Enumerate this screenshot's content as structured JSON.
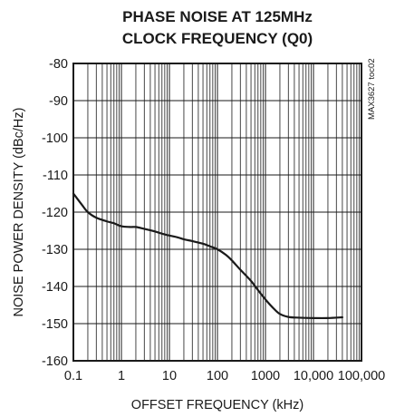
{
  "chart_data": {
    "type": "line",
    "title_lines": [
      "PHASE NOISE AT 125MHz",
      "CLOCK FREQUENCY (Q0)"
    ],
    "xlabel": "OFFSET FREQUENCY (kHz)",
    "ylabel": "NOISE POWER DENSITY (dBc/Hz)",
    "xscale": "log",
    "xlim": [
      0.1,
      100000
    ],
    "ylim": [
      -160,
      -80
    ],
    "xticks": [
      0.1,
      1,
      10,
      100,
      1000,
      10000,
      100000
    ],
    "xtick_labels": [
      "0.1",
      "1",
      "10",
      "100",
      "1000",
      "10,000",
      "100,000"
    ],
    "yticks": [
      -80,
      -90,
      -100,
      -110,
      -120,
      -130,
      -140,
      -150,
      -160
    ],
    "ytick_labels": [
      "-80",
      "-90",
      "-100",
      "-110",
      "-120",
      "-130",
      "-140",
      "-150",
      "-160"
    ],
    "grid": true,
    "part_code": "MAX3627 toc02",
    "series": [
      {
        "color": "#1a1a1a",
        "x": [
          0.1,
          0.15,
          0.2,
          0.3,
          0.5,
          0.7,
          1,
          1.5,
          2,
          3,
          5,
          7,
          10,
          15,
          20,
          30,
          50,
          70,
          100,
          150,
          200,
          300,
          500,
          700,
          1000,
          1500,
          2000,
          3000,
          5000,
          10000,
          20000,
          40000
        ],
        "y": [
          -115,
          -118,
          -120,
          -121.5,
          -122.5,
          -123,
          -123.8,
          -124,
          -124,
          -124.5,
          -125.2,
          -125.8,
          -126.3,
          -126.8,
          -127.3,
          -127.8,
          -128.5,
          -129.2,
          -130,
          -131.5,
          -133,
          -135.5,
          -138.5,
          -141,
          -143.5,
          -146,
          -147.4,
          -148.2,
          -148.4,
          -148.5,
          -148.5,
          -148.3
        ]
      }
    ]
  }
}
